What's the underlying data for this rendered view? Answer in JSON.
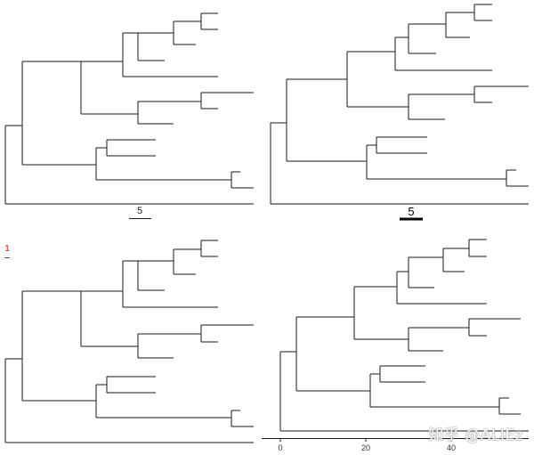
{
  "panels": {
    "top_left": {
      "scale_bar_label": "5"
    },
    "top_right": {
      "scale_bar_label": "5"
    },
    "bottom_left": {
      "scale_bar_label": "1",
      "scale_bar_color": "#ff0000"
    },
    "bottom_right": {
      "axis_ticks": [
        "0",
        "20",
        "40"
      ]
    }
  },
  "watermark": "知乎 @ALIEz",
  "colors": {
    "branch": "#1a1a1a",
    "accent": "#ff0000"
  }
}
